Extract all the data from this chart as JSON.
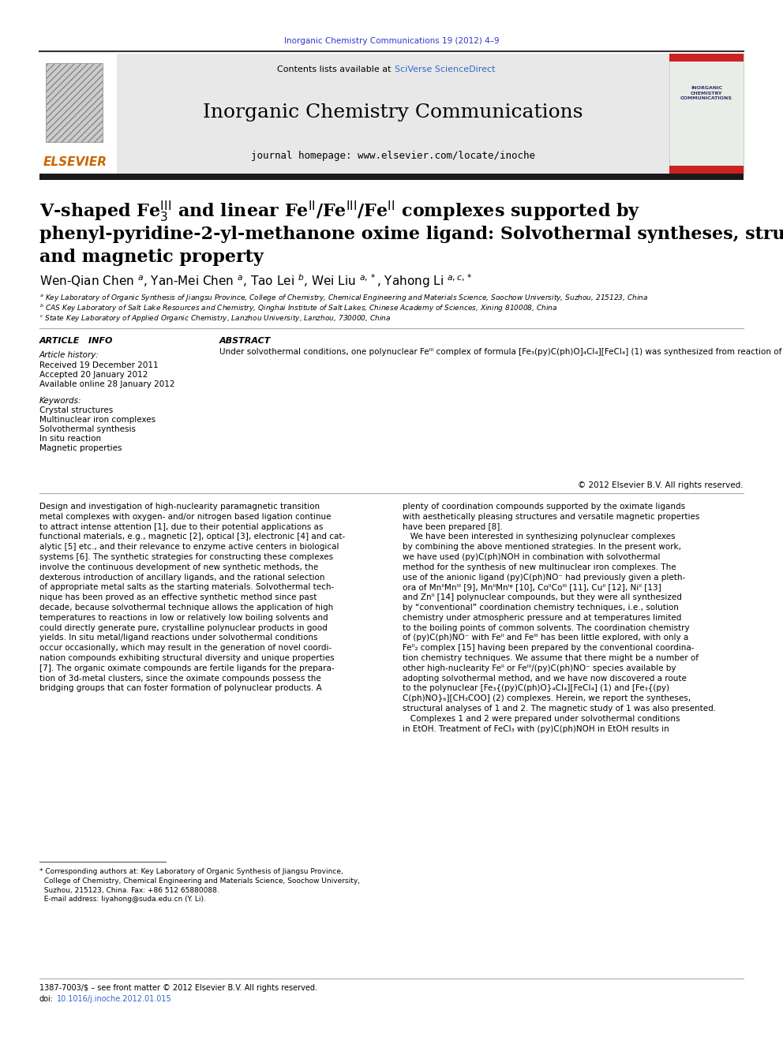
{
  "page_width": 9.92,
  "page_height": 13.23,
  "bg_color": "#ffffff",
  "journal_ref_color": "#3333cc",
  "journal_ref": "Inorganic Chemistry Communications 19 (2012) 4–9",
  "header_bg": "#e8e8e8",
  "sciverse_color": "#3366cc",
  "journal_title": "Inorganic Chemistry Communications",
  "journal_homepage": "journal homepage: www.elsevier.com/locate/inoche",
  "keywords": [
    "Crystal structures",
    "Multinuclear iron complexes",
    "Solvothermal synthesis",
    "In situ reaction",
    "Magnetic properties"
  ],
  "copyright": "© 2012 Elsevier B.V. All rights reserved.",
  "doi_color": "#3366cc",
  "separator_color": "#333333",
  "black_bar_color": "#1a1a1a"
}
